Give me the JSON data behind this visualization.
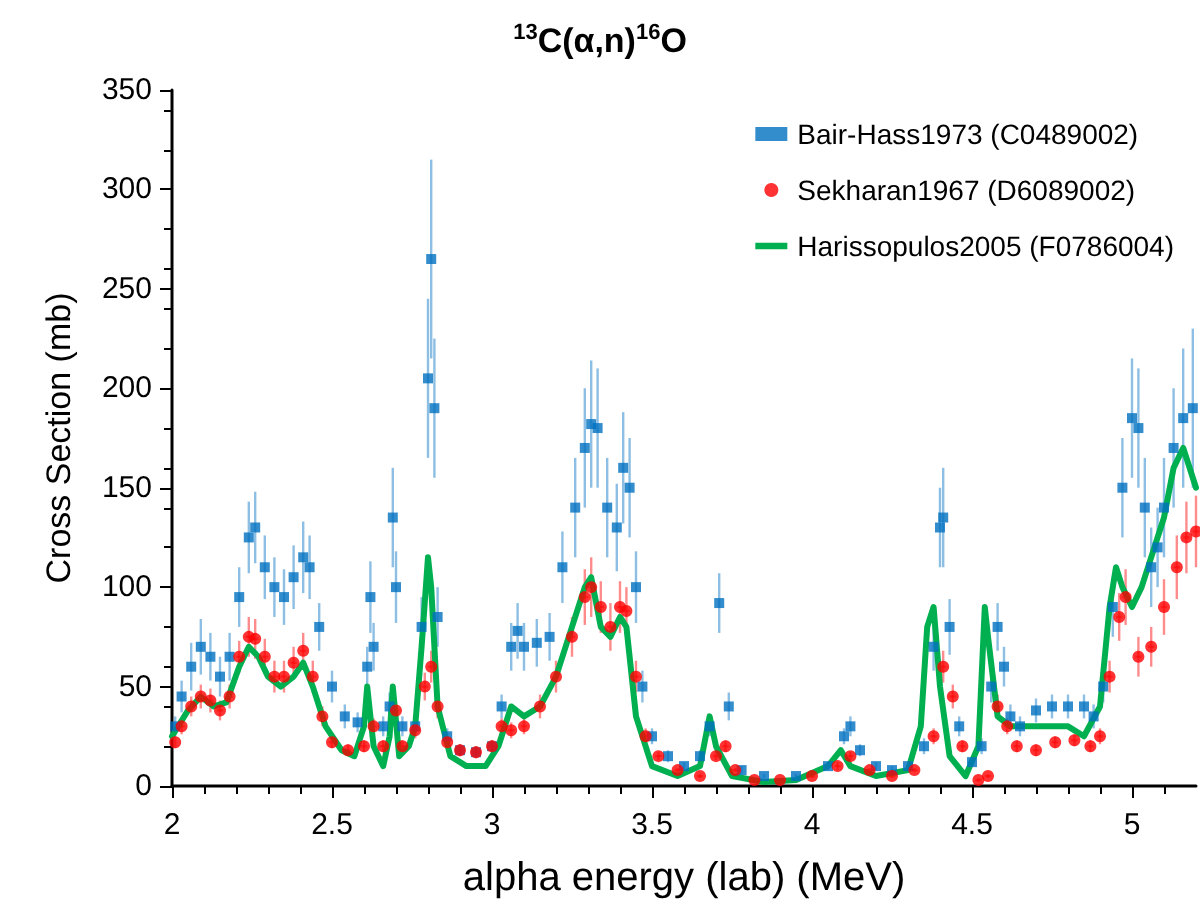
{
  "chart_data": {
    "type": "scatter",
    "title": "$^{13}$C(α,n)$^{16}$O",
    "xlabel": "alpha energy (lab) (MeV)",
    "ylabel": "Cross Section (mb)",
    "xlim": [
      2,
      5.2
    ],
    "xticks": [
      2,
      2.5,
      3,
      3.5,
      4,
      4.5,
      5
    ],
    "ylim": [
      0,
      350
    ],
    "yticks": [
      0,
      50,
      100,
      150,
      200,
      250,
      300,
      350
    ],
    "grid": false,
    "legend": "top right",
    "series": [
      {
        "name": "Bair-Hass1973 (C0489002)",
        "color": "#0070c0",
        "marker": "square",
        "x": [
          2.01,
          2.03,
          2.06,
          2.09,
          2.12,
          2.15,
          2.18,
          2.21,
          2.24,
          2.26,
          2.29,
          2.32,
          2.35,
          2.38,
          2.41,
          2.43,
          2.46,
          2.5,
          2.54,
          2.58,
          2.61,
          2.62,
          2.63,
          2.66,
          2.68,
          2.69,
          2.7,
          2.72,
          2.76,
          2.78,
          2.8,
          2.81,
          2.82,
          2.83,
          2.86,
          2.9,
          2.95,
          3.0,
          3.03,
          3.06,
          3.08,
          3.1,
          3.14,
          3.18,
          3.22,
          3.26,
          3.29,
          3.31,
          3.33,
          3.36,
          3.39,
          3.41,
          3.43,
          3.45,
          3.47,
          3.5,
          3.55,
          3.6,
          3.65,
          3.68,
          3.71,
          3.74,
          3.78,
          3.85,
          3.95,
          4.05,
          4.1,
          4.12,
          4.15,
          4.2,
          4.25,
          4.3,
          4.35,
          4.38,
          4.4,
          4.41,
          4.43,
          4.46,
          4.5,
          4.53,
          4.56,
          4.58,
          4.6,
          4.62,
          4.65,
          4.7,
          4.75,
          4.8,
          4.85,
          4.88,
          4.91,
          4.94,
          4.97,
          5.0,
          5.02,
          5.04,
          5.06,
          5.08,
          5.1,
          5.13,
          5.16,
          5.19
        ],
        "values": [
          30,
          45,
          60,
          70,
          65,
          55,
          65,
          95,
          125,
          130,
          110,
          100,
          95,
          105,
          115,
          110,
          80,
          50,
          35,
          32,
          60,
          95,
          70,
          30,
          40,
          135,
          100,
          30,
          30,
          80,
          205,
          265,
          190,
          85,
          25,
          18,
          17,
          20,
          40,
          70,
          78,
          70,
          72,
          75,
          110,
          140,
          170,
          182,
          180,
          140,
          130,
          160,
          150,
          100,
          50,
          25,
          15,
          10,
          15,
          30,
          92,
          40,
          8,
          5,
          5,
          10,
          25,
          30,
          18,
          10,
          8,
          10,
          20,
          70,
          130,
          135,
          80,
          30,
          12,
          20,
          50,
          80,
          60,
          35,
          30,
          38,
          40,
          40,
          40,
          35,
          50,
          90,
          150,
          185,
          180,
          140,
          110,
          120,
          140,
          170,
          185,
          190
        ],
        "errors": [
          5,
          8,
          12,
          14,
          12,
          10,
          12,
          15,
          18,
          18,
          16,
          15,
          14,
          16,
          18,
          16,
          12,
          8,
          6,
          5,
          10,
          18,
          12,
          5,
          7,
          25,
          18,
          5,
          5,
          15,
          40,
          50,
          35,
          15,
          4,
          3,
          3,
          3,
          6,
          12,
          14,
          12,
          12,
          12,
          18,
          25,
          30,
          32,
          30,
          25,
          22,
          28,
          25,
          18,
          8,
          4,
          3,
          2,
          3,
          5,
          15,
          7,
          2,
          1,
          1,
          2,
          4,
          5,
          3,
          2,
          2,
          2,
          4,
          12,
          20,
          25,
          14,
          5,
          2,
          4,
          8,
          12,
          10,
          6,
          5,
          6,
          6,
          6,
          6,
          6,
          8,
          15,
          25,
          30,
          30,
          25,
          20,
          20,
          25,
          30,
          35,
          40
        ]
      },
      {
        "name": "Sekharan1967 (D6089002)",
        "color": "#ff0000",
        "marker": "circle",
        "x": [
          2.01,
          2.03,
          2.06,
          2.09,
          2.12,
          2.15,
          2.18,
          2.21,
          2.24,
          2.26,
          2.29,
          2.32,
          2.35,
          2.38,
          2.41,
          2.44,
          2.47,
          2.5,
          2.55,
          2.6,
          2.63,
          2.66,
          2.7,
          2.72,
          2.76,
          2.79,
          2.81,
          2.83,
          2.86,
          2.9,
          2.95,
          3.0,
          3.03,
          3.06,
          3.1,
          3.15,
          3.2,
          3.25,
          3.29,
          3.31,
          3.34,
          3.37,
          3.4,
          3.42,
          3.45,
          3.48,
          3.52,
          3.58,
          3.65,
          3.7,
          3.73,
          3.76,
          3.82,
          3.9,
          4.0,
          4.08,
          4.12,
          4.18,
          4.25,
          4.32,
          4.38,
          4.41,
          4.44,
          4.47,
          4.52,
          4.55,
          4.58,
          4.61,
          4.64,
          4.7,
          4.76,
          4.82,
          4.87,
          4.9,
          4.93,
          4.96,
          4.98,
          5.02,
          5.06,
          5.1,
          5.14,
          5.17,
          5.2
        ],
        "values": [
          22,
          30,
          40,
          45,
          43,
          38,
          45,
          65,
          75,
          74,
          65,
          55,
          55,
          62,
          68,
          55,
          35,
          22,
          18,
          20,
          30,
          20,
          38,
          20,
          28,
          50,
          60,
          40,
          22,
          18,
          17,
          20,
          30,
          28,
          30,
          40,
          55,
          75,
          95,
          100,
          90,
          80,
          90,
          88,
          55,
          25,
          15,
          8,
          5,
          15,
          20,
          8,
          3,
          3,
          5,
          10,
          15,
          8,
          5,
          8,
          25,
          60,
          45,
          20,
          3,
          5,
          40,
          30,
          20,
          18,
          22,
          23,
          20,
          25,
          55,
          85,
          95,
          65,
          70,
          90,
          110,
          125,
          128
        ],
        "errors": [
          3,
          4,
          5,
          6,
          6,
          5,
          6,
          8,
          10,
          10,
          9,
          8,
          8,
          8,
          9,
          8,
          5,
          3,
          3,
          3,
          4,
          3,
          4,
          3,
          4,
          7,
          8,
          6,
          3,
          3,
          3,
          3,
          4,
          4,
          4,
          6,
          8,
          10,
          14,
          15,
          13,
          12,
          13,
          12,
          8,
          4,
          2,
          1,
          1,
          2,
          3,
          1,
          1,
          1,
          1,
          2,
          2,
          1,
          1,
          1,
          4,
          8,
          6,
          3,
          1,
          1,
          6,
          4,
          3,
          3,
          3,
          3,
          3,
          4,
          8,
          12,
          14,
          10,
          10,
          14,
          16,
          18,
          18
        ],
        "xerrors": [
          null,
          0.01,
          0.01,
          0.01,
          0.01,
          0.01,
          0.01,
          0.01,
          0.01,
          0.01,
          0.01,
          0.01,
          0.01,
          0.01,
          0.01,
          0.01,
          0.01,
          0.01,
          0.01,
          0.01,
          0.01,
          0.01,
          0.01,
          0.01,
          0.01,
          0.01,
          0.01,
          0.01,
          0.01,
          0.01,
          0.01,
          0.01,
          0.01,
          0.01,
          0.01,
          0.01,
          0.01,
          0.01,
          0.01,
          0.01,
          0.01,
          0.01,
          0.01,
          0.01,
          0.01,
          0.01,
          0.01,
          0.01,
          0.01,
          0.01,
          0.01,
          0.01,
          0.01,
          0.01,
          0.01,
          0.01,
          0.01,
          0.01,
          0.01,
          0.01,
          0.01,
          0.01,
          0.01,
          0.01,
          0.01,
          0.01,
          0.01,
          0.01,
          0.01,
          0.01,
          0.01,
          0.01,
          0.01,
          0.01,
          0.01,
          0.01,
          0.01,
          0.01,
          0.01,
          0.01,
          0.01,
          0.01,
          0.01
        ]
      },
      {
        "name": "Harissopulos2005 (F0786004)",
        "type": "line",
        "color": "#00b050",
        "marker": "none",
        "line_style": "solid",
        "x": [
          2.0,
          2.05,
          2.09,
          2.13,
          2.17,
          2.21,
          2.24,
          2.27,
          2.3,
          2.34,
          2.38,
          2.41,
          2.44,
          2.48,
          2.53,
          2.57,
          2.6,
          2.61,
          2.63,
          2.66,
          2.68,
          2.69,
          2.71,
          2.74,
          2.76,
          2.78,
          2.8,
          2.81,
          2.83,
          2.87,
          2.92,
          2.98,
          3.02,
          3.06,
          3.1,
          3.15,
          3.2,
          3.25,
          3.29,
          3.31,
          3.34,
          3.37,
          3.4,
          3.42,
          3.45,
          3.5,
          3.58,
          3.65,
          3.68,
          3.7,
          3.75,
          3.85,
          3.95,
          4.05,
          4.09,
          4.12,
          4.2,
          4.3,
          4.34,
          4.36,
          4.38,
          4.4,
          4.43,
          4.48,
          4.52,
          4.54,
          4.55,
          4.58,
          4.62,
          4.7,
          4.8,
          4.85,
          4.9,
          4.93,
          4.95,
          4.97,
          5.0,
          5.03,
          5.07,
          5.1,
          5.13,
          5.16,
          5.19,
          5.2
        ],
        "values": [
          25,
          38,
          45,
          40,
          42,
          60,
          70,
          65,
          55,
          50,
          55,
          62,
          50,
          30,
          18,
          15,
          30,
          50,
          20,
          10,
          25,
          50,
          15,
          20,
          30,
          70,
          115,
          100,
          40,
          15,
          10,
          10,
          20,
          40,
          35,
          40,
          55,
          80,
          100,
          105,
          80,
          75,
          85,
          80,
          35,
          10,
          5,
          10,
          35,
          20,
          5,
          2,
          3,
          10,
          18,
          10,
          5,
          8,
          30,
          80,
          90,
          50,
          15,
          5,
          20,
          90,
          75,
          35,
          30,
          30,
          30,
          25,
          40,
          90,
          110,
          100,
          90,
          100,
          120,
          135,
          160,
          170,
          155,
          150
        ]
      }
    ]
  }
}
